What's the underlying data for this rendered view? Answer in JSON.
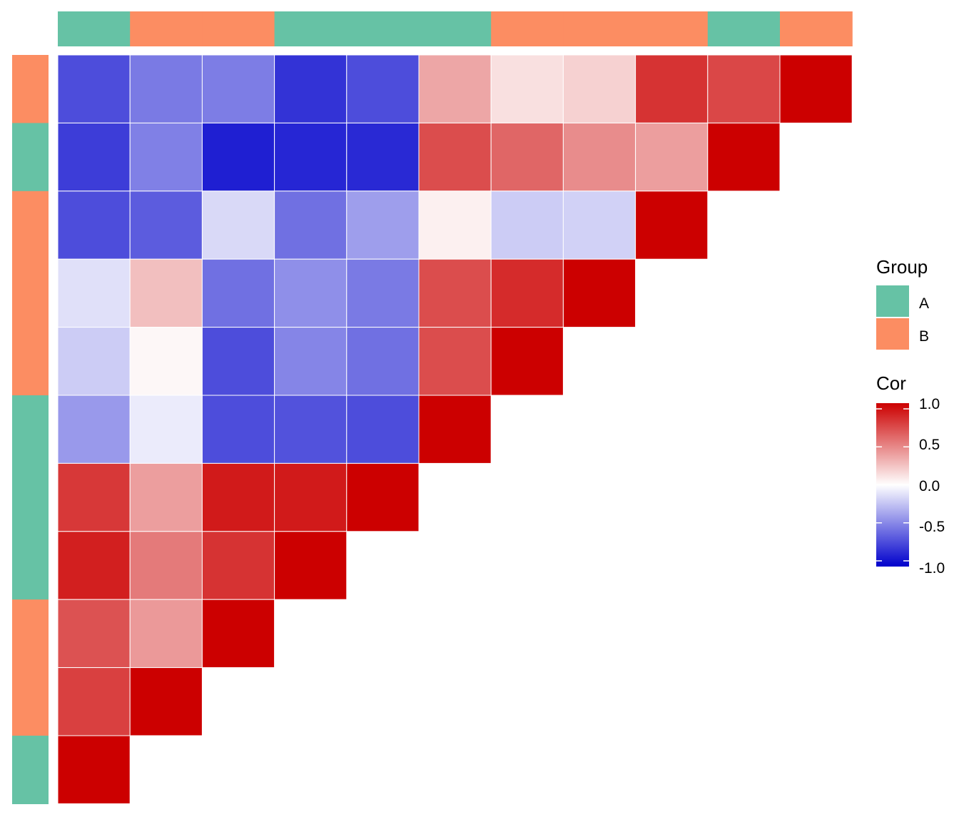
{
  "chart_data": {
    "type": "heatmap",
    "title": "",
    "xlabel": "",
    "ylabel": "",
    "n": 11,
    "top_groups": [
      "A",
      "B",
      "B",
      "A",
      "A",
      "A",
      "B",
      "B",
      "B",
      "A",
      "B"
    ],
    "left_groups": [
      "B",
      "A",
      "B",
      "B",
      "B",
      "A",
      "A",
      "A",
      "B",
      "B",
      "A"
    ],
    "group_colors": {
      "A": "#66C2A5",
      "B": "#FC8D62"
    },
    "color_scale": {
      "low": "#0000CC",
      "mid": "#FFFFFF",
      "high": "#CC0000",
      "limits": [
        -1,
        1
      ]
    },
    "rows": [
      [
        -0.7,
        -0.52,
        -0.51,
        -0.8,
        -0.7,
        0.35,
        0.12,
        0.18,
        0.8,
        0.72,
        1.0
      ],
      [
        -0.76,
        -0.5,
        -0.88,
        -0.85,
        -0.84,
        0.7,
        0.6,
        0.45,
        0.38,
        1.0
      ],
      [
        -0.7,
        -0.64,
        -0.15,
        -0.56,
        -0.38,
        0.06,
        -0.2,
        -0.18,
        1.0
      ],
      [
        -0.12,
        0.25,
        -0.56,
        -0.44,
        -0.52,
        0.7,
        0.83,
        1.0
      ],
      [
        -0.2,
        0.03,
        -0.7,
        -0.48,
        -0.56,
        0.7,
        1.0
      ],
      [
        -0.4,
        -0.08,
        -0.7,
        -0.68,
        -0.7,
        1.0
      ],
      [
        0.78,
        0.38,
        0.9,
        0.9,
        1.0
      ],
      [
        0.88,
        0.52,
        0.8,
        1.0
      ],
      [
        0.68,
        0.4,
        1.0
      ],
      [
        0.75,
        1.0
      ],
      [
        1.0
      ]
    ]
  },
  "legend": {
    "group_title": "Group",
    "group_items": [
      {
        "label": "A",
        "color": "#66C2A5"
      },
      {
        "label": "B",
        "color": "#FC8D62"
      }
    ],
    "cor_title": "Cor",
    "cor_ticks": [
      "1.0",
      "0.5",
      "0.0",
      "-0.5",
      "-1.0"
    ]
  }
}
